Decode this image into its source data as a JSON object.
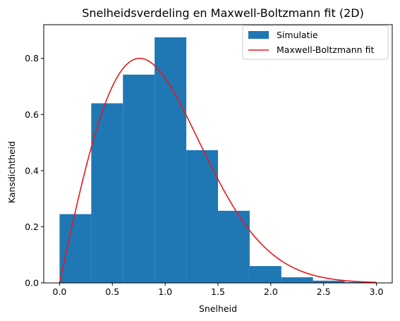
{
  "chart_data": {
    "type": "bar",
    "title": "Snelheidsverdeling en Maxwell-Boltzmann fit (2D)",
    "xlabel": "Snelheid",
    "ylabel": "Kansdichtheid",
    "xlim": [
      -0.15,
      3.15
    ],
    "ylim": [
      0,
      0.92
    ],
    "xticks": [
      "0.0",
      "0.5",
      "1.0",
      "1.5",
      "2.0",
      "2.5",
      "3.0"
    ],
    "yticks": [
      "0.0",
      "0.2",
      "0.4",
      "0.6",
      "0.8"
    ],
    "grid": false,
    "legend_position": "top-right",
    "series": [
      {
        "name": "Simulatie",
        "kind": "histogram",
        "color": "#1f77b4",
        "bin_edges": [
          0.0,
          0.3,
          0.6,
          0.9,
          1.2,
          1.5,
          1.8,
          2.1,
          2.4,
          2.7,
          3.0
        ],
        "values": [
          0.245,
          0.64,
          0.742,
          0.875,
          0.473,
          0.257,
          0.06,
          0.02,
          0.008,
          0.003
        ]
      },
      {
        "name": "Maxwell-Boltzmann fit",
        "kind": "line",
        "color": "#e41a1c",
        "function": "v/sigma^2 * exp(-v^2/(2*sigma^2))",
        "sigma": 0.758,
        "x_range": [
          0,
          3
        ]
      }
    ]
  }
}
